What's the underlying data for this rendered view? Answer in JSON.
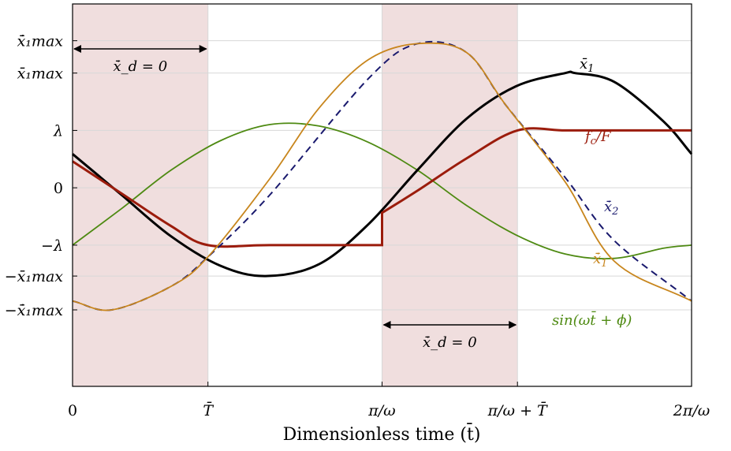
{
  "chart_data": {
    "type": "line",
    "xlabel": "Dimensionless time (t̄)",
    "x_range": [
      0,
      6.2832
    ],
    "y_range": [
      -1.35,
      1.25
    ],
    "grid": true,
    "x_ticks": [
      {
        "x": 0,
        "label": "0"
      },
      {
        "x": 1.3744,
        "label": "T̄"
      },
      {
        "x": 3.1416,
        "label": "π/ω"
      },
      {
        "x": 4.516,
        "label": "π/ω + T̄"
      },
      {
        "x": 6.2832,
        "label": "2π/ω"
      }
    ],
    "y_ticks": [
      {
        "y": 1.0,
        "label": "ẋ̄₁max",
        "color": "#000000"
      },
      {
        "y": 0.78,
        "label": "x̄₁max",
        "color": "#000000"
      },
      {
        "y": 0.39,
        "label": "λ",
        "color": "#9b1c0c"
      },
      {
        "y": 0,
        "label": "0",
        "color": "#000000"
      },
      {
        "y": -0.39,
        "label": "−λ",
        "color": "#9b1c0c"
      },
      {
        "y": -0.6,
        "label": "−x̄₁max",
        "color": "#000000"
      },
      {
        "y": -0.83,
        "label": "−ẋ̄₁max",
        "color": "#000000"
      }
    ],
    "shaded_regions": [
      [
        0,
        1.3744
      ],
      [
        3.1416,
        4.516
      ]
    ],
    "shade_color": "#f0dede",
    "series": [
      {
        "name": "sin(ωt̄ + ϕ)",
        "color": "#4e8a12",
        "x": [
          0,
          0.5,
          1,
          1.5,
          2,
          2.5,
          3,
          3.5,
          4,
          4.5,
          5,
          5.5,
          6,
          6.2832
        ],
        "y": [
          -0.39,
          -0.14,
          0.12,
          0.32,
          0.43,
          0.42,
          0.31,
          0.12,
          -0.12,
          -0.32,
          -0.45,
          -0.48,
          -0.41,
          -0.39
        ]
      },
      {
        "name": "x̄₁",
        "color": "#000000",
        "x": [
          0,
          0.5,
          1,
          1.5,
          1.96,
          2.5,
          3,
          3.5,
          4,
          4.5,
          5,
          5.1,
          5.5,
          6,
          6.2832
        ],
        "y": [
          0.23,
          -0.05,
          -0.33,
          -0.53,
          -0.6,
          -0.52,
          -0.25,
          0.12,
          0.47,
          0.69,
          0.78,
          0.78,
          0.72,
          0.45,
          0.23
        ]
      },
      {
        "name": "f_c/F",
        "color": "#9b1c0c",
        "x": [
          0,
          0.5,
          1,
          1.3744,
          2,
          3.1416,
          3.1416,
          3.5,
          4,
          4.516,
          5,
          5.5,
          6,
          6.2832
        ],
        "y": [
          0.18,
          -0.04,
          -0.26,
          -0.39,
          -0.39,
          -0.39,
          -0.17,
          -0.02,
          0.2,
          0.39,
          0.39,
          0.39,
          0.39,
          0.39
        ]
      },
      {
        "name": "ẋ̄₂",
        "color": "#1a1a6e",
        "dashed": true,
        "x": [
          0,
          0.4,
          1,
          1.3744,
          2,
          3,
          3.5,
          4,
          4.4,
          5,
          5.5,
          6.2832
        ],
        "y": [
          -0.77,
          -0.83,
          -0.67,
          -0.47,
          -0.05,
          0.74,
          0.98,
          0.92,
          0.56,
          0.07,
          -0.36,
          -0.77
        ]
      },
      {
        "name": "ẋ̄₁",
        "color": "#c8861d",
        "x": [
          0,
          0.4,
          1,
          1.3744,
          2,
          2.5,
          3,
          3.5,
          4,
          4.4,
          5,
          5.5,
          6.2832
        ],
        "y": [
          -0.77,
          -0.83,
          -0.67,
          -0.47,
          0.06,
          0.54,
          0.87,
          0.98,
          0.92,
          0.56,
          0.04,
          -0.5,
          -0.77
        ]
      }
    ],
    "annotations": [
      {
        "text": "ẋ̄_d = 0",
        "x_from": 0,
        "x_to": 1.3744,
        "y": 0.78
      },
      {
        "text": "ẋ̄_d = 0",
        "x_from": 3.1416,
        "x_to": 4.516,
        "y": -0.65
      }
    ]
  }
}
